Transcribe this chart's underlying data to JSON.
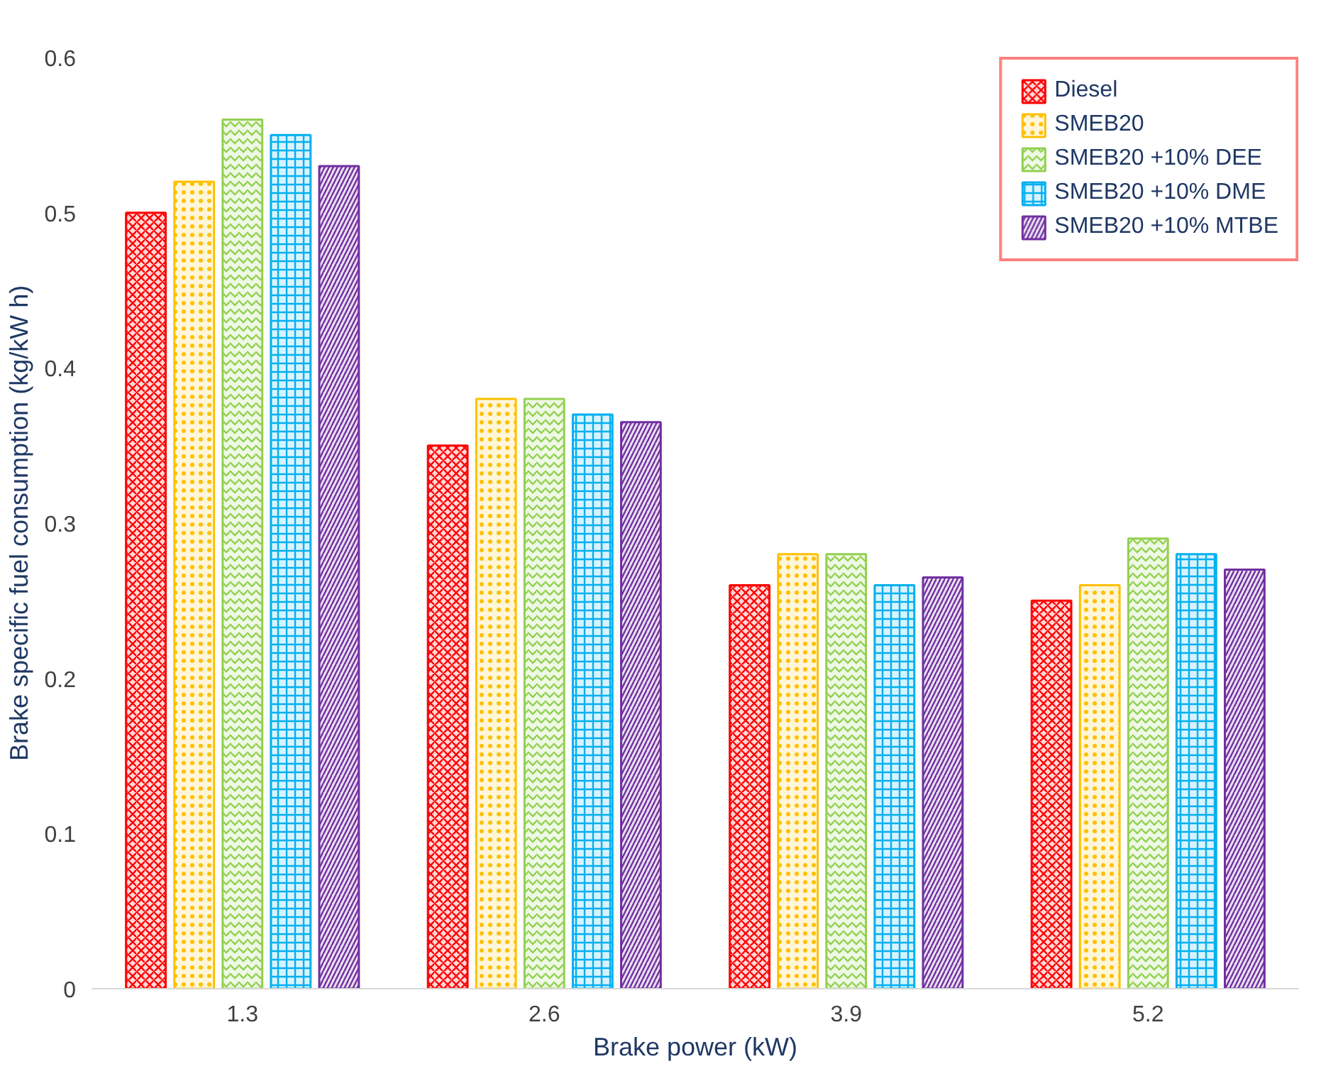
{
  "chart_data": {
    "type": "bar",
    "xlabel": "Brake power (kW)",
    "ylabel": "Brake specific fuel consumption (kg/kW h)",
    "categories": [
      "1.3",
      "2.6",
      "3.9",
      "5.2"
    ],
    "series": [
      {
        "name": "Diesel",
        "color": "#ff0000",
        "values": [
          0.5,
          0.35,
          0.26,
          0.25
        ]
      },
      {
        "name": "SMEB20",
        "color": "#ffc000",
        "values": [
          0.52,
          0.38,
          0.28,
          0.26
        ]
      },
      {
        "name": "SMEB20 +10% DEE",
        "color": "#92d050",
        "values": [
          0.56,
          0.38,
          0.28,
          0.29
        ]
      },
      {
        "name": "SMEB20 +10% DME",
        "color": "#00b0f0",
        "values": [
          0.55,
          0.37,
          0.26,
          0.28
        ]
      },
      {
        "name": "SMEB20 +10% MTBE",
        "color": "#7030a0",
        "values": [
          0.53,
          0.365,
          0.265,
          0.27
        ]
      }
    ],
    "ylim": [
      0,
      0.6
    ],
    "yticks": [
      0,
      0.1,
      0.2,
      0.3,
      0.4,
      0.5,
      0.6
    ],
    "grid": false,
    "legend": "top right"
  }
}
